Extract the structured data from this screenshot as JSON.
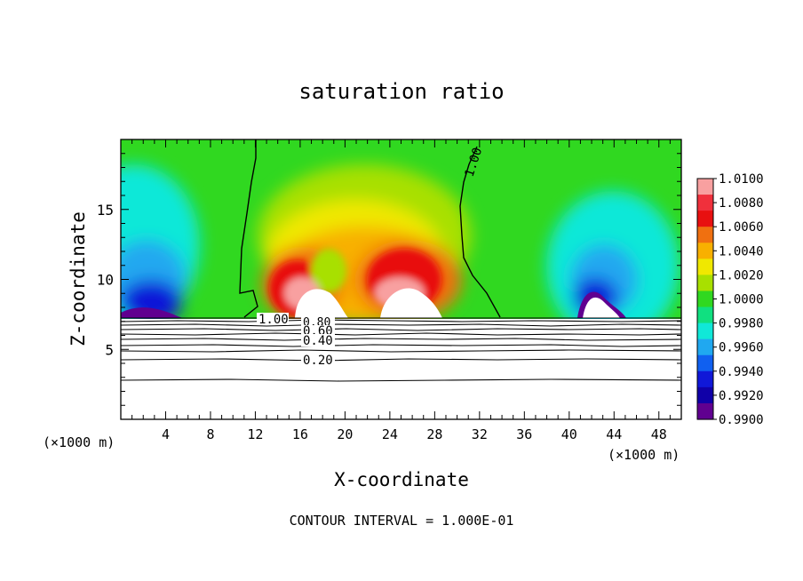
{
  "chart_data": {
    "type": "heatmap",
    "title": "saturation ratio",
    "xlabel": "X-coordinate",
    "ylabel": "Z-coordinate",
    "x_unit_left": "(×1000 m)",
    "x_unit_right": "(×1000 m)",
    "footer": "CONTOUR INTERVAL = 1.000E-01",
    "xlim": [
      0,
      50
    ],
    "ylim": [
      0,
      20
    ],
    "x_ticks": [
      4,
      8,
      12,
      16,
      20,
      24,
      28,
      32,
      36,
      40,
      44,
      48
    ],
    "y_ticks": [
      5,
      10,
      15
    ],
    "colorbar": {
      "labels": [
        "1.0100",
        "1.0080",
        "1.0060",
        "1.0040",
        "1.0020",
        "1.0000",
        "0.9980",
        "0.9960",
        "0.9940",
        "0.9920",
        "0.9900"
      ],
      "colors": [
        "#f8a0a0",
        "#f0303c",
        "#e81010",
        "#f07010",
        "#f8b000",
        "#f0e800",
        "#a8e000",
        "#30d820",
        "#10e080",
        "#10e8d8",
        "#20a8f0",
        "#1060f0",
        "#1018d8",
        "#1000a8",
        "#600090"
      ]
    },
    "contour_labels": [
      {
        "text": "1.00",
        "x": 30.5,
        "y": 18.0
      },
      {
        "text": "1.00",
        "x": 13.4,
        "y": 7.0
      },
      {
        "text": "0.80",
        "x": 17.4,
        "y": 6.8
      },
      {
        "text": "0.60",
        "x": 17.4,
        "y": 6.2
      },
      {
        "text": "0.40",
        "x": 17.4,
        "y": 5.5
      },
      {
        "text": "0.20",
        "x": 17.4,
        "y": 4.3
      }
    ]
  }
}
